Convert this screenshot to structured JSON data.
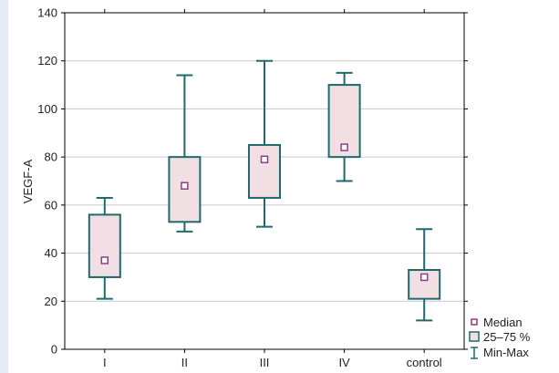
{
  "chart_data": {
    "type": "box",
    "ylabel": "VEGF-A",
    "ylim": [
      0,
      140
    ],
    "yticks": [
      0,
      20,
      40,
      60,
      80,
      100,
      120,
      140
    ],
    "categories": [
      "I",
      "II",
      "III",
      "IV",
      "control"
    ],
    "boxes": [
      {
        "category": "I",
        "min": 21,
        "q1": 30,
        "median": 37,
        "q3": 56,
        "max": 63
      },
      {
        "category": "II",
        "min": 49,
        "q1": 53,
        "median": 68,
        "q3": 80,
        "max": 114
      },
      {
        "category": "III",
        "min": 51,
        "q1": 63,
        "median": 79,
        "q3": 85,
        "max": 120
      },
      {
        "category": "IV",
        "min": 70,
        "q1": 80,
        "median": 84,
        "q3": 110,
        "max": 115
      },
      {
        "category": "control",
        "min": 12,
        "q1": 21,
        "median": 30,
        "q3": 33,
        "max": 50
      }
    ],
    "grid": true,
    "legend_position": "bottom-right",
    "legend": [
      "Median",
      "25–75 %",
      "Min-Max"
    ],
    "colors": {
      "box_fill": "#f1dfe3",
      "box_stroke": "#1f6a6c",
      "median_marker": "#8e3f86",
      "grid": "#c8c8c8",
      "axis": "#000000",
      "side_strip": "#e4edf5"
    }
  }
}
